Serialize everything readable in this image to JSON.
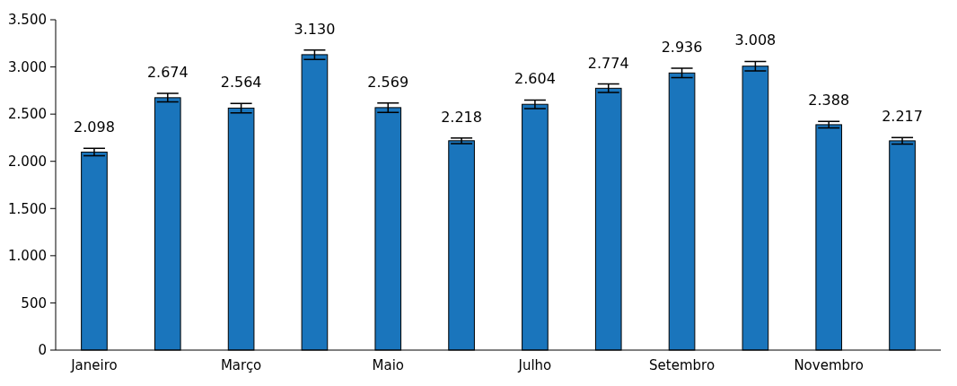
{
  "chart_data": {
    "type": "bar",
    "categories": [
      "Janeiro",
      null,
      "Março",
      null,
      "Maio",
      null,
      "Julho",
      null,
      "Setembro",
      null,
      "Novembro",
      null
    ],
    "values": [
      2098,
      2674,
      2564,
      3130,
      2569,
      2218,
      2604,
      2774,
      2936,
      3008,
      2388,
      2217
    ],
    "errors": [
      40,
      45,
      50,
      50,
      50,
      30,
      45,
      45,
      50,
      50,
      35,
      35
    ],
    "value_labels": [
      "2.098",
      "2.674",
      "2.564",
      "3.130",
      "2.569",
      "2.218",
      "2.604",
      "2.774",
      "2.936",
      "3.008",
      "2.388",
      "2.217"
    ],
    "color": "#1a75bc",
    "ylim": [
      0,
      3500
    ],
    "yticks": [
      0,
      {
        "value": 500,
        "label": "500"
      },
      {
        "value": 1000,
        "label": "1.000"
      },
      {
        "value": 1500,
        "label": "1.500"
      },
      {
        "value": 2000,
        "label": "2.000"
      },
      {
        "value": 2500,
        "label": "2.500"
      },
      {
        "value": 3000,
        "label": "3.000"
      },
      {
        "value": 3500,
        "label": "3.500"
      }
    ],
    "grid": false
  }
}
